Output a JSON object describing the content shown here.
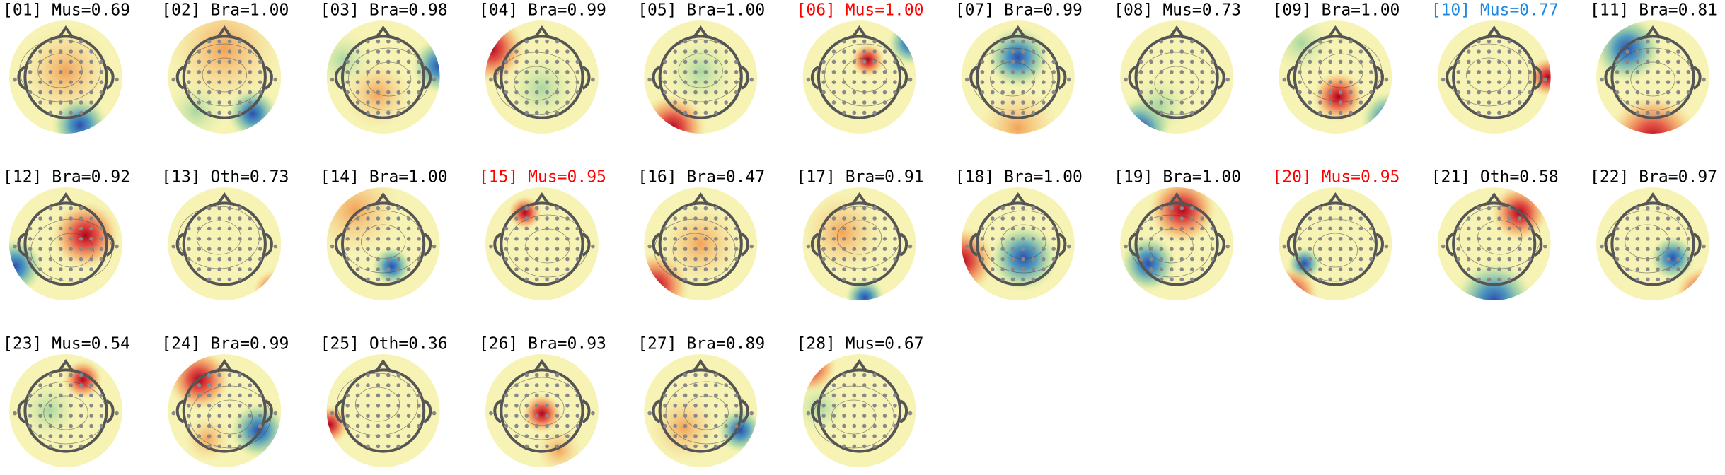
{
  "components": [
    {
      "label": "[01] Mus=0.69",
      "color": "#000000"
    },
    {
      "label": "[02] Bra=1.00",
      "color": "#000000"
    },
    {
      "label": "[03] Bra=0.98",
      "color": "#000000"
    },
    {
      "label": "[04] Bra=0.99",
      "color": "#000000"
    },
    {
      "label": "[05] Bra=1.00",
      "color": "#000000"
    },
    {
      "label": "[06] Mus=1.00",
      "color": "#ff0000"
    },
    {
      "label": "[07] Bra=0.99",
      "color": "#000000"
    },
    {
      "label": "[08] Mus=0.73",
      "color": "#000000"
    },
    {
      "label": "[09] Bra=1.00",
      "color": "#000000"
    },
    {
      "label": "[10] Mus=0.77",
      "color": "#1e88e5"
    },
    {
      "label": "[11] Bra=0.81",
      "color": "#000000"
    },
    {
      "label": "[12] Bra=0.92",
      "color": "#000000"
    },
    {
      "label": "[13] Oth=0.73",
      "color": "#000000"
    },
    {
      "label": "[14] Bra=1.00",
      "color": "#000000"
    },
    {
      "label": "[15] Mus=0.95",
      "color": "#ff0000"
    },
    {
      "label": "[16] Bra=0.47",
      "color": "#000000"
    },
    {
      "label": "[17] Bra=0.91",
      "color": "#000000"
    },
    {
      "label": "[18] Bra=1.00",
      "color": "#000000"
    },
    {
      "label": "[19] Bra=1.00",
      "color": "#000000"
    },
    {
      "label": "[20] Mus=0.95",
      "color": "#ff0000"
    },
    {
      "label": "[21] Oth=0.58",
      "color": "#000000"
    },
    {
      "label": "[22] Bra=0.97",
      "color": "#000000"
    },
    {
      "label": "[23] Mus=0.54",
      "color": "#000000"
    },
    {
      "label": "[24] Bra=0.99",
      "color": "#000000"
    },
    {
      "label": "[25] Oth=0.36",
      "color": "#000000"
    },
    {
      "label": "[26] Bra=0.93",
      "color": "#000000"
    },
    {
      "label": "[27] Bra=0.89",
      "color": "#000000"
    },
    {
      "label": "[28] Mus=0.67",
      "color": "#000000"
    }
  ]
}
